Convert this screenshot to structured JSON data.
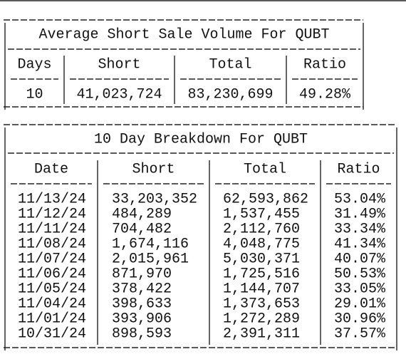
{
  "tables": [
    {
      "title": "Average Short Sale Volume For QUBT",
      "headers": [
        "Days",
        "Short",
        "Total",
        "Ratio"
      ],
      "rows": [
        [
          "10",
          "41,023,724",
          "83,230,699",
          "49.28%"
        ]
      ]
    },
    {
      "title": "10 Day Breakdown For QUBT",
      "headers": [
        "Date",
        "Short",
        "Total",
        "Ratio"
      ],
      "rows": [
        [
          "11/13/24",
          "33,203,352",
          "62,593,862",
          "53.04%"
        ],
        [
          "11/12/24",
          "484,289",
          "1,537,455",
          "31.49%"
        ],
        [
          "11/11/24",
          "704,482",
          "2,112,760",
          "33.34%"
        ],
        [
          "11/08/24",
          "1,674,116",
          "4,048,775",
          "41.34%"
        ],
        [
          "11/07/24",
          "2,015,961",
          "5,030,371",
          "40.07%"
        ],
        [
          "11/06/24",
          "871,970",
          "1,725,516",
          "50.53%"
        ],
        [
          "11/05/24",
          "378,422",
          "1,144,707",
          "33.05%"
        ],
        [
          "11/04/24",
          "398,633",
          "1,373,653",
          "29.01%"
        ],
        [
          "11/01/24",
          "393,906",
          "1,272,289",
          "30.96%"
        ],
        [
          "10/31/24",
          "898,593",
          "2,391,311",
          "37.57%"
        ]
      ]
    }
  ]
}
